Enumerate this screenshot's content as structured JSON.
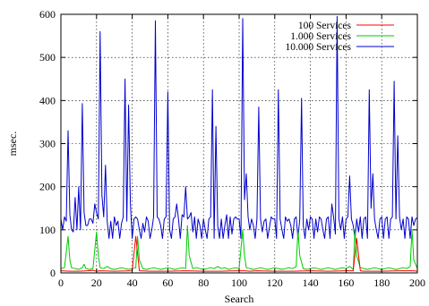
{
  "chart_data": {
    "type": "line",
    "title": "",
    "xlabel": "Search",
    "ylabel": "msec.",
    "xlim": [
      0,
      200
    ],
    "ylim": [
      0,
      600
    ],
    "xticks": [
      0,
      20,
      40,
      60,
      80,
      100,
      120,
      140,
      160,
      180,
      200
    ],
    "yticks": [
      0,
      100,
      200,
      300,
      400,
      500,
      600
    ],
    "grid": true,
    "legend_position": "top-right",
    "series": [
      {
        "name": "100 Services",
        "color": "#ff0000",
        "x": [
          0,
          5,
          10,
          15,
          18,
          20,
          22,
          30,
          40,
          42,
          44,
          50,
          60,
          70,
          80,
          90,
          100,
          103,
          106,
          110,
          120,
          130,
          140,
          150,
          160,
          164,
          166,
          168,
          170,
          180,
          190,
          196,
          198,
          200
        ],
        "y": [
          5,
          4,
          4,
          5,
          6,
          4,
          5,
          4,
          5,
          85,
          5,
          4,
          4,
          5,
          4,
          4,
          5,
          5,
          4,
          5,
          4,
          4,
          5,
          4,
          5,
          5,
          80,
          5,
          4,
          4,
          5,
          5,
          5,
          4
        ]
      },
      {
        "name": "1.000 Services",
        "color": "#00cc00",
        "x": [
          0,
          2,
          4,
          5,
          6,
          8,
          10,
          12,
          13,
          14,
          16,
          18,
          20,
          21,
          22,
          24,
          26,
          28,
          30,
          32,
          34,
          36,
          38,
          40,
          42,
          43,
          44,
          46,
          48,
          50,
          52,
          54,
          56,
          58,
          60,
          62,
          64,
          66,
          68,
          70,
          71,
          72,
          74,
          76,
          78,
          80,
          82,
          84,
          86,
          88,
          90,
          92,
          94,
          96,
          98,
          100,
          102,
          103,
          104,
          106,
          108,
          110,
          112,
          114,
          116,
          118,
          120,
          122,
          124,
          126,
          128,
          130,
          132,
          133,
          134,
          136,
          138,
          140,
          142,
          144,
          146,
          148,
          150,
          152,
          154,
          156,
          158,
          160,
          162,
          164,
          165,
          166,
          168,
          170,
          172,
          174,
          176,
          178,
          180,
          182,
          184,
          186,
          188,
          190,
          192,
          194,
          196,
          197,
          198,
          200
        ],
        "y": [
          10,
          12,
          85,
          30,
          12,
          10,
          8,
          12,
          20,
          10,
          8,
          10,
          95,
          40,
          12,
          10,
          15,
          10,
          8,
          10,
          12,
          10,
          8,
          10,
          12,
          85,
          30,
          10,
          8,
          10,
          12,
          10,
          8,
          10,
          12,
          10,
          8,
          10,
          12,
          10,
          110,
          40,
          10,
          12,
          10,
          8,
          10,
          12,
          10,
          15,
          10,
          12,
          8,
          10,
          12,
          10,
          100,
          40,
          12,
          10,
          8,
          10,
          12,
          10,
          8,
          10,
          12,
          10,
          8,
          10,
          12,
          10,
          15,
          100,
          40,
          10,
          8,
          10,
          12,
          10,
          8,
          10,
          12,
          10,
          8,
          10,
          12,
          10,
          15,
          8,
          100,
          40,
          12,
          10,
          8,
          10,
          12,
          10,
          8,
          10,
          12,
          10,
          8,
          10,
          12,
          10,
          15,
          100,
          30,
          10
        ]
      },
      {
        "name": "10.000 Services",
        "color": "#0000cc",
        "x": [
          0,
          1,
          2,
          3,
          4,
          5,
          6,
          7,
          8,
          9,
          10,
          11,
          12,
          13,
          14,
          15,
          16,
          17,
          18,
          19,
          20,
          21,
          22,
          23,
          24,
          25,
          26,
          27,
          28,
          29,
          30,
          31,
          32,
          33,
          34,
          35,
          36,
          37,
          38,
          39,
          40,
          41,
          42,
          43,
          44,
          45,
          46,
          47,
          48,
          49,
          50,
          51,
          52,
          53,
          54,
          55,
          56,
          57,
          58,
          59,
          60,
          61,
          62,
          63,
          64,
          65,
          66,
          67,
          68,
          69,
          70,
          71,
          72,
          73,
          74,
          75,
          76,
          77,
          78,
          79,
          80,
          81,
          82,
          83,
          84,
          85,
          86,
          87,
          88,
          89,
          90,
          91,
          92,
          93,
          94,
          95,
          96,
          97,
          98,
          99,
          100,
          101,
          102,
          103,
          104,
          105,
          106,
          107,
          108,
          109,
          110,
          111,
          112,
          113,
          114,
          115,
          116,
          117,
          118,
          119,
          120,
          121,
          122,
          123,
          124,
          125,
          126,
          127,
          128,
          129,
          130,
          131,
          132,
          133,
          134,
          135,
          136,
          137,
          138,
          139,
          140,
          141,
          142,
          143,
          144,
          145,
          146,
          147,
          148,
          149,
          150,
          151,
          152,
          153,
          154,
          155,
          156,
          157,
          158,
          159,
          160,
          161,
          162,
          163,
          164,
          165,
          166,
          167,
          168,
          169,
          170,
          171,
          172,
          173,
          174,
          175,
          176,
          177,
          178,
          179,
          180,
          181,
          182,
          183,
          184,
          185,
          186,
          187,
          188,
          189,
          190,
          191,
          192,
          193,
          194,
          195,
          196,
          197,
          198,
          199,
          200
        ],
        "y": [
          125,
          100,
          130,
          120,
          330,
          135,
          100,
          95,
          175,
          100,
          200,
          100,
          393,
          140,
          110,
          110,
          125,
          125,
          115,
          160,
          140,
          125,
          560,
          180,
          130,
          250,
          120,
          80,
          120,
          80,
          130,
          110,
          120,
          80,
          115,
          130,
          450,
          120,
          390,
          160,
          80,
          125,
          130,
          125,
          100,
          80,
          115,
          95,
          130,
          120,
          80,
          100,
          130,
          585,
          130,
          125,
          110,
          80,
          125,
          130,
          420,
          100,
          80,
          125,
          130,
          160,
          125,
          80,
          135,
          130,
          200,
          125,
          130,
          140,
          95,
          130,
          80,
          125,
          110,
          80,
          125,
          100,
          80,
          125,
          130,
          425,
          80,
          340,
          110,
          80,
          125,
          80,
          110,
          135,
          80,
          130,
          90,
          125,
          130,
          125,
          125,
          80,
          590,
          170,
          230,
          130,
          100,
          125,
          110,
          80,
          125,
          385,
          125,
          95,
          120,
          125,
          80,
          105,
          130,
          125,
          125,
          80,
          425,
          125,
          100,
          80,
          130,
          120,
          125,
          110,
          80,
          125,
          130,
          80,
          125,
          405,
          110,
          80,
          125,
          100,
          130,
          125,
          80,
          125,
          95,
          130,
          125,
          100,
          80,
          125,
          130,
          80,
          160,
          130,
          90,
          595,
          125,
          100,
          130,
          80,
          125,
          130,
          225,
          125,
          110,
          80,
          125,
          95,
          130,
          80,
          125,
          130,
          80,
          425,
          150,
          230,
          125,
          100,
          80,
          125,
          130,
          80,
          125,
          130,
          80,
          125,
          130,
          445,
          125,
          318,
          130,
          100,
          125,
          80,
          130,
          125,
          80,
          130,
          110,
          125,
          128
        ]
      }
    ]
  }
}
